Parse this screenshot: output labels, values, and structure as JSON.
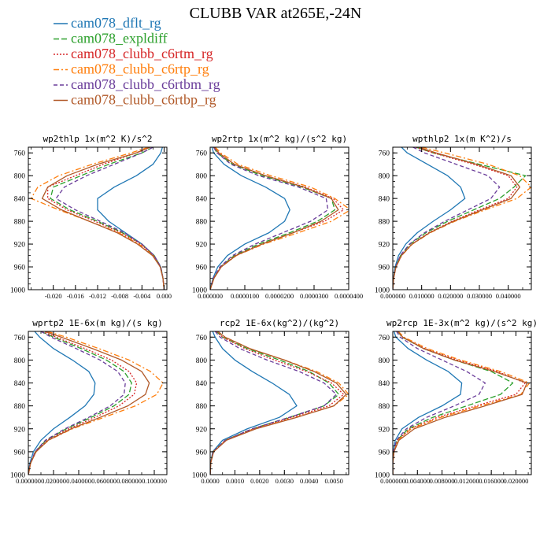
{
  "title": "CLUBB VAR at265E,-24N",
  "legend": [
    {
      "name": "cam078_dflt_rg",
      "color": "#1f77b4",
      "dash": ""
    },
    {
      "name": "cam078_expldiff",
      "color": "#2ca02c",
      "dash": "7,3"
    },
    {
      "name": "cam078_clubb_c6rtm_rg",
      "color": "#d62728",
      "dash": "2,2"
    },
    {
      "name": "cam078_clubb_c6rtp_rg",
      "color": "#ff7f0e",
      "dash": "7,3,2,3"
    },
    {
      "name": "cam078_clubb_c6rtbm_rg",
      "color": "#6a3d9a",
      "dash": "5,3"
    },
    {
      "name": "cam078_clubb_c6rtbp_rg",
      "color": "#b15928",
      "dash": ""
    }
  ],
  "chart_data": [
    {
      "type": "line",
      "title": "wp2thlp  1x(m^2 K)/s^2",
      "xlim": [
        -0.0245,
        0.0005
      ],
      "ylim": [
        1000,
        750
      ],
      "xticks": [
        "-0.020",
        "-0.016",
        "-0.012",
        "-0.008",
        "-0.004",
        "0.000"
      ],
      "xtick_values": [
        -0.02,
        -0.016,
        -0.012,
        -0.008,
        -0.004,
        0.0
      ],
      "yticks": [
        760,
        800,
        840,
        880,
        920,
        960,
        1000
      ],
      "levels": [
        750,
        760,
        780,
        800,
        820,
        840,
        860,
        880,
        900,
        920,
        940,
        960,
        980,
        1000
      ],
      "series": [
        {
          "name": "cam078_dflt_rg",
          "values": [
            -0.0003,
            -0.0006,
            -0.002,
            -0.005,
            -0.009,
            -0.012,
            -0.012,
            -0.01,
            -0.007,
            -0.004,
            -0.0018,
            -0.0006,
            -0.0002,
            0.0
          ]
        },
        {
          "name": "cam078_expldiff",
          "values": [
            -0.002,
            -0.004,
            -0.01,
            -0.015,
            -0.02,
            -0.0205,
            -0.017,
            -0.012,
            -0.0075,
            -0.004,
            -0.0018,
            -0.0006,
            -0.0002,
            0.0
          ]
        },
        {
          "name": "cam078_clubb_c6rtm_rg",
          "values": [
            -0.003,
            -0.005,
            -0.011,
            -0.016,
            -0.021,
            -0.021,
            -0.0175,
            -0.0125,
            -0.0078,
            -0.0042,
            -0.0019,
            -0.0007,
            -0.0002,
            0.0
          ]
        },
        {
          "name": "cam078_clubb_c6rtp_rg",
          "values": [
            -0.0028,
            -0.006,
            -0.013,
            -0.019,
            -0.0228,
            -0.024,
            -0.019,
            -0.0135,
            -0.0082,
            -0.0045,
            -0.002,
            -0.0007,
            -0.0002,
            0.0
          ]
        },
        {
          "name": "cam078_clubb_c6rtbm_rg",
          "values": [
            -0.002,
            -0.004,
            -0.009,
            -0.014,
            -0.018,
            -0.0195,
            -0.016,
            -0.0115,
            -0.0072,
            -0.004,
            -0.0018,
            -0.0006,
            -0.0002,
            0.0
          ]
        },
        {
          "name": "cam078_clubb_c6rtbp_rg",
          "values": [
            -0.0025,
            -0.005,
            -0.012,
            -0.0175,
            -0.021,
            -0.022,
            -0.0185,
            -0.0135,
            -0.0085,
            -0.0048,
            -0.0021,
            -0.0007,
            -0.0002,
            0.0
          ]
        }
      ]
    },
    {
      "type": "line",
      "title": "wp2rtp  1x(m^2 kg)/(s^2 kg)",
      "xlim": [
        0.0,
        4e-05
      ],
      "ylim": [
        1000,
        750
      ],
      "xticks": [
        "0.000000",
        "0.0000100",
        "0.0000200",
        "0.0000300",
        "0.0000400"
      ],
      "xtick_values": [
        0.0,
        1e-05,
        2e-05,
        3e-05,
        4e-05
      ],
      "yticks": [
        760,
        800,
        840,
        880,
        920,
        960,
        1000
      ],
      "levels": [
        750,
        760,
        780,
        800,
        820,
        840,
        860,
        880,
        900,
        920,
        940,
        960,
        980,
        1000
      ],
      "series": [
        {
          "name": "cam078_dflt_rg",
          "values": [
            5e-07,
            1e-06,
            4e-06,
            9e-06,
            1.6e-05,
            2.15e-05,
            2.3e-05,
            2.15e-05,
            1.7e-05,
            1e-05,
            5e-06,
            2.2e-06,
            8e-07,
            0.0
          ]
        },
        {
          "name": "cam078_expldiff",
          "values": [
            1e-06,
            2e-06,
            6.5e-06,
            1.5e-05,
            2.65e-05,
            3.5e-05,
            3.6e-05,
            3.1e-05,
            2.3e-05,
            1.4e-05,
            7e-06,
            3e-06,
            1e-06,
            0.0
          ]
        },
        {
          "name": "cam078_clubb_c6rtm_rg",
          "values": [
            1e-06,
            2.5e-06,
            7e-06,
            1.6e-05,
            2.75e-05,
            3.55e-05,
            3.85e-05,
            3.3e-05,
            2.4e-05,
            1.48e-05,
            7.3e-06,
            3.1e-06,
            1e-06,
            0.0
          ]
        },
        {
          "name": "cam078_clubb_c6rtp_rg",
          "values": [
            1.5e-06,
            3e-06,
            8e-06,
            1.75e-05,
            2.9e-05,
            3.6e-05,
            4.05e-05,
            3.5e-05,
            2.55e-05,
            1.55e-05,
            7.6e-06,
            3.2e-06,
            1.1e-06,
            0.0
          ]
        },
        {
          "name": "cam078_clubb_c6rtbm_rg",
          "values": [
            1e-06,
            2e-06,
            6e-06,
            1.4e-05,
            2.55e-05,
            3.35e-05,
            3.4e-05,
            2.9e-05,
            2.1e-05,
            1.3e-05,
            6.5e-06,
            2.8e-06,
            9e-07,
            0.0
          ]
        },
        {
          "name": "cam078_clubb_c6rtbp_rg",
          "values": [
            1.2e-06,
            2.5e-06,
            7e-06,
            1.6e-05,
            2.7e-05,
            3.5e-05,
            3.7e-05,
            3.2e-05,
            2.4e-05,
            1.5e-05,
            7.5e-06,
            3.2e-06,
            1.1e-06,
            0.0
          ]
        }
      ]
    },
    {
      "type": "line",
      "title": "wpthlp2  1x(m K^2)/s",
      "xlim": [
        0.0,
        0.048
      ],
      "ylim": [
        1000,
        750
      ],
      "xticks": [
        "0.000000",
        "0.010000",
        "0.020000",
        "0.030000",
        "0.040000"
      ],
      "xtick_values": [
        0.0,
        0.01,
        0.02,
        0.03,
        0.04
      ],
      "yticks": [
        760,
        800,
        840,
        880,
        920,
        960,
        1000
      ],
      "levels": [
        750,
        760,
        780,
        800,
        820,
        840,
        860,
        880,
        900,
        920,
        940,
        960,
        980,
        1000
      ],
      "series": [
        {
          "name": "cam078_dflt_rg",
          "values": [
            0.003,
            0.005,
            0.012,
            0.019,
            0.0235,
            0.025,
            0.02,
            0.014,
            0.0085,
            0.0045,
            0.002,
            0.0008,
            0.0002,
            0.0
          ]
        },
        {
          "name": "cam078_expldiff",
          "values": [
            0.008,
            0.014,
            0.03,
            0.046,
            0.042,
            0.037,
            0.028,
            0.019,
            0.0115,
            0.006,
            0.0027,
            0.001,
            0.0003,
            0.0
          ]
        },
        {
          "name": "cam078_clubb_c6rtm_rg",
          "values": [
            0.008,
            0.014,
            0.028,
            0.04,
            0.043,
            0.04,
            0.03,
            0.0205,
            0.0125,
            0.0066,
            0.003,
            0.0011,
            0.0003,
            0.0
          ]
        },
        {
          "name": "cam078_clubb_c6rtp_rg",
          "values": [
            0.01,
            0.018,
            0.033,
            0.044,
            0.048,
            0.043,
            0.032,
            0.0215,
            0.013,
            0.0068,
            0.0031,
            0.0011,
            0.0003,
            0.0
          ]
        },
        {
          "name": "cam078_clubb_c6rtbm_rg",
          "values": [
            0.007,
            0.011,
            0.022,
            0.033,
            0.037,
            0.034,
            0.026,
            0.018,
            0.011,
            0.0058,
            0.0026,
            0.001,
            0.0003,
            0.0
          ]
        },
        {
          "name": "cam078_clubb_c6rtbp_rg",
          "values": [
            0.009,
            0.015,
            0.029,
            0.041,
            0.044,
            0.041,
            0.031,
            0.021,
            0.0128,
            0.0067,
            0.003,
            0.0011,
            0.0003,
            0.0
          ]
        }
      ]
    },
    {
      "type": "line",
      "title": "wprtp2  1E-6x(m kg)/(s kg)",
      "xlim": [
        0.0,
        0.11
      ],
      "ylim": [
        1000,
        750
      ],
      "xticks": [
        "0.000000",
        "0.020000",
        "0.040000",
        "0.060000",
        "0.080000",
        "0.100000"
      ],
      "xtick_values": [
        0.0,
        0.02,
        0.04,
        0.06,
        0.08,
        0.1
      ],
      "yticks": [
        760,
        800,
        840,
        880,
        920,
        960,
        1000
      ],
      "levels": [
        750,
        760,
        780,
        800,
        820,
        840,
        860,
        880,
        900,
        920,
        940,
        960,
        980,
        1000
      ],
      "series": [
        {
          "name": "cam078_dflt_rg",
          "values": [
            0.005,
            0.009,
            0.02,
            0.035,
            0.048,
            0.053,
            0.052,
            0.045,
            0.033,
            0.02,
            0.01,
            0.004,
            0.0012,
            0.0
          ]
        },
        {
          "name": "cam078_expldiff",
          "values": [
            0.01,
            0.02,
            0.042,
            0.062,
            0.076,
            0.082,
            0.08,
            0.068,
            0.05,
            0.03,
            0.014,
            0.0055,
            0.0016,
            0.0
          ]
        },
        {
          "name": "cam078_clubb_c6rtm_rg",
          "values": [
            0.011,
            0.022,
            0.045,
            0.066,
            0.08,
            0.086,
            0.084,
            0.072,
            0.053,
            0.032,
            0.015,
            0.0058,
            0.0017,
            0.0
          ]
        },
        {
          "name": "cam078_clubb_c6rtp_rg",
          "values": [
            0.015,
            0.03,
            0.056,
            0.08,
            0.097,
            0.107,
            0.102,
            0.085,
            0.06,
            0.035,
            0.016,
            0.0062,
            0.0018,
            0.0
          ]
        },
        {
          "name": "cam078_clubb_c6rtbm_rg",
          "values": [
            0.01,
            0.018,
            0.038,
            0.057,
            0.071,
            0.077,
            0.076,
            0.065,
            0.048,
            0.029,
            0.0135,
            0.0053,
            0.0016,
            0.0
          ]
        },
        {
          "name": "cam078_clubb_c6rtbp_rg",
          "values": [
            0.013,
            0.026,
            0.051,
            0.074,
            0.09,
            0.096,
            0.093,
            0.079,
            0.057,
            0.034,
            0.0158,
            0.0061,
            0.0018,
            0.0
          ]
        }
      ]
    },
    {
      "type": "line",
      "title": "rcp2  1E-6x(kg^2)/(kg^2)",
      "xlim": [
        0.0,
        0.0056
      ],
      "ylim": [
        1000,
        750
      ],
      "xticks": [
        "0.0000",
        "0.0010",
        "0.0020",
        "0.0030",
        "0.0040",
        "0.0050"
      ],
      "xtick_values": [
        0.0,
        0.001,
        0.002,
        0.003,
        0.004,
        0.005
      ],
      "yticks": [
        760,
        800,
        840,
        880,
        920,
        960,
        1000
      ],
      "levels": [
        750,
        760,
        780,
        800,
        820,
        840,
        860,
        880,
        900,
        920,
        940,
        960,
        980,
        1000
      ],
      "series": [
        {
          "name": "cam078_dflt_rg",
          "values": [
            0.0001,
            0.0002,
            0.0005,
            0.001,
            0.0017,
            0.0025,
            0.0032,
            0.0035,
            0.0028,
            0.0015,
            0.0005,
            0.0001,
            2e-05,
            0.0
          ]
        },
        {
          "name": "cam078_expldiff",
          "values": [
            0.00025,
            0.0005,
            0.0015,
            0.0028,
            0.004,
            0.0048,
            0.0052,
            0.0046,
            0.0032,
            0.0017,
            0.0006,
            0.00012,
            2e-05,
            0.0
          ]
        },
        {
          "name": "cam078_clubb_c6rtm_rg",
          "values": [
            0.00025,
            0.0005,
            0.0014,
            0.0026,
            0.0039,
            0.0049,
            0.0054,
            0.0048,
            0.0033,
            0.00175,
            0.00062,
            0.00013,
            2e-05,
            0.0
          ]
        },
        {
          "name": "cam078_clubb_c6rtp_rg",
          "values": [
            0.0003,
            0.0006,
            0.0016,
            0.003,
            0.0043,
            0.0052,
            0.0056,
            0.005,
            0.00345,
            0.0018,
            0.00064,
            0.00013,
            2e-05,
            0.0
          ]
        },
        {
          "name": "cam078_clubb_c6rtbm_rg",
          "values": [
            0.0002,
            0.0004,
            0.0012,
            0.0023,
            0.0036,
            0.0046,
            0.0051,
            0.0046,
            0.0032,
            0.0017,
            0.0006,
            0.00012,
            2e-05,
            0.0
          ]
        },
        {
          "name": "cam078_clubb_c6rtbp_rg",
          "values": [
            0.0003,
            0.0006,
            0.0016,
            0.003,
            0.0042,
            0.0051,
            0.0055,
            0.005,
            0.0035,
            0.00185,
            0.00066,
            0.00014,
            2e-05,
            0.0
          ]
        }
      ]
    },
    {
      "type": "line",
      "title": "wp2rcp  1E-3x(m^2 kg)/(s^2 kg)",
      "xlim": [
        0.0,
        0.0225
      ],
      "ylim": [
        1000,
        750
      ],
      "xticks": [
        "0.000000",
        "0.004000",
        "0.008000",
        "0.012000",
        "0.016000",
        "0.020000"
      ],
      "xtick_values": [
        0.0,
        0.004,
        0.008,
        0.012,
        0.016,
        0.02
      ],
      "yticks": [
        760,
        800,
        840,
        880,
        920,
        960,
        1000
      ],
      "levels": [
        750,
        760,
        780,
        800,
        820,
        840,
        860,
        880,
        900,
        920,
        940,
        960,
        980,
        1000
      ],
      "series": [
        {
          "name": "cam078_dflt_rg",
          "values": [
            0.0002,
            0.0005,
            0.0025,
            0.0055,
            0.009,
            0.0112,
            0.011,
            0.008,
            0.0042,
            0.0015,
            0.0004,
            0.0001,
            0.0,
            0.0
          ]
        },
        {
          "name": "cam078_expldiff",
          "values": [
            0.0008,
            0.0015,
            0.005,
            0.01,
            0.016,
            0.0195,
            0.0175,
            0.012,
            0.0065,
            0.0025,
            0.0007,
            0.0001,
            0.0,
            0.0
          ]
        },
        {
          "name": "cam078_clubb_c6rtm_rg",
          "values": [
            0.0008,
            0.0016,
            0.0052,
            0.0105,
            0.017,
            0.0215,
            0.02,
            0.0135,
            0.0072,
            0.0028,
            0.0008,
            0.0002,
            0.0,
            0.0
          ]
        },
        {
          "name": "cam078_clubb_c6rtp_rg",
          "values": [
            0.0009,
            0.0018,
            0.0056,
            0.011,
            0.0175,
            0.0222,
            0.0208,
            0.0142,
            0.0078,
            0.003,
            0.0008,
            0.0002,
            0.0,
            0.0
          ]
        },
        {
          "name": "cam078_clubb_c6rtbm_rg",
          "values": [
            0.0006,
            0.0012,
            0.004,
            0.008,
            0.012,
            0.015,
            0.014,
            0.01,
            0.0055,
            0.0022,
            0.0006,
            0.0001,
            0.0,
            0.0
          ]
        },
        {
          "name": "cam078_clubb_c6rtbp_rg",
          "values": [
            0.0008,
            0.0016,
            0.005,
            0.01,
            0.0165,
            0.0218,
            0.021,
            0.015,
            0.0085,
            0.0035,
            0.001,
            0.0002,
            0.0,
            0.0
          ]
        }
      ]
    }
  ]
}
